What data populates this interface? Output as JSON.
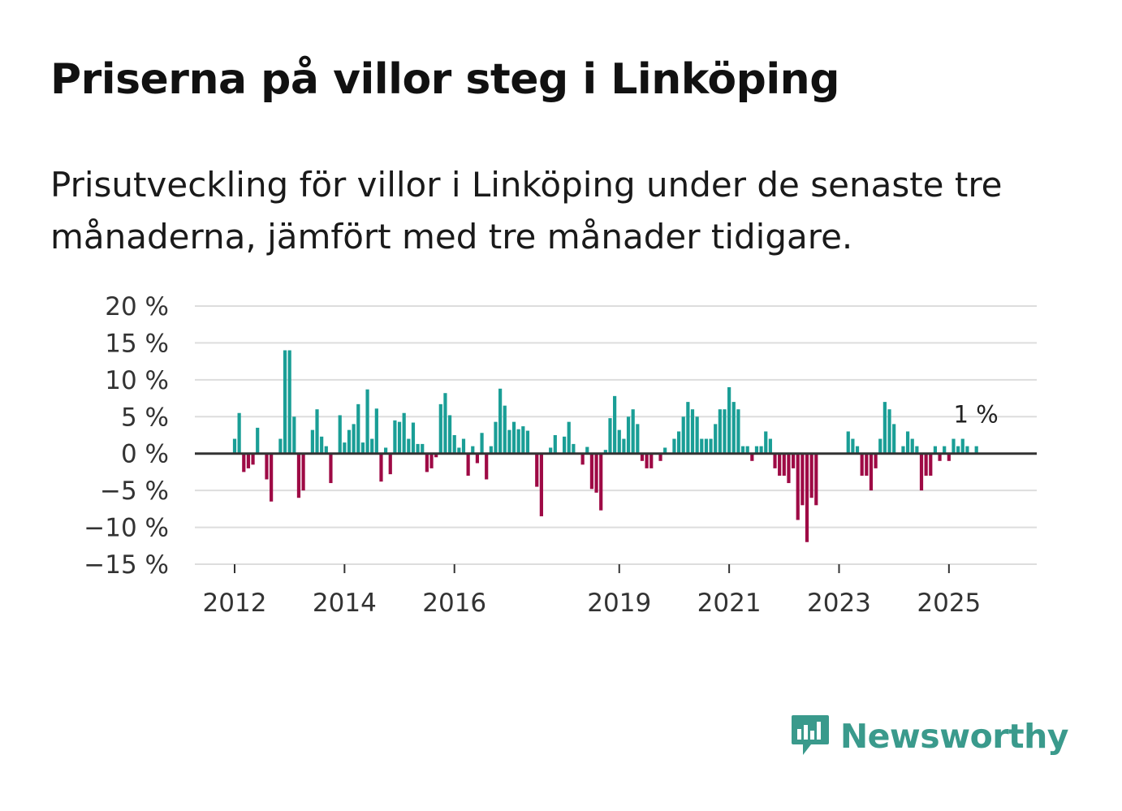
{
  "title": "Priserna på villor steg i Linköping",
  "subtitle": "Prisutveckling för villor i Linköping under de senaste tre månaderna, jämfört med tre månader tidigare.",
  "brand": {
    "name": "Newsworthy",
    "icon": "newsworthy-logo-icon",
    "color": "#3a9a8c"
  },
  "colors": {
    "positive": "#1a9e96",
    "negative": "#9e0a45",
    "grid": "#dddddd",
    "zero": "#333333"
  },
  "chart_data": {
    "type": "bar",
    "title": "Priserna på villor steg i Linköping",
    "ylabel": "",
    "xlabel": "",
    "ylim": [
      -15,
      20
    ],
    "y_ticks": [
      20,
      15,
      10,
      5,
      0,
      -5,
      -10,
      -15
    ],
    "y_tick_labels": [
      "20 %",
      "15 %",
      "10 %",
      "5 %",
      "0 %",
      "−5 %",
      "−10 %",
      "−15 %"
    ],
    "x_ticks": [
      "2012",
      "2014",
      "2016",
      "2019",
      "2021",
      "2023",
      "2025"
    ],
    "start": "2011-09",
    "values": [
      0,
      0,
      0,
      0,
      2,
      5.5,
      -2.5,
      -2,
      -1.5,
      3.5,
      0,
      -3.5,
      -6.5,
      0,
      2,
      14,
      14,
      5,
      -6,
      -5,
      0,
      3.2,
      6,
      2.3,
      1,
      -4,
      0,
      5.2,
      1.5,
      3.2,
      4,
      6.7,
      1.5,
      8.7,
      2,
      6.1,
      -3.8,
      0.8,
      -2.8,
      4.5,
      4.3,
      5.5,
      2,
      4.2,
      1.3,
      1.3,
      -2.5,
      -2,
      -0.5,
      6.7,
      8.2,
      5.2,
      2.5,
      0.8,
      2,
      -3,
      1,
      -1.3,
      2.8,
      -3.5,
      1,
      4.3,
      8.8,
      6.5,
      3.2,
      4.3,
      3.3,
      3.7,
      3.1,
      0,
      -4.5,
      -8.5,
      0,
      0.8,
      2.5,
      0,
      2.3,
      4.3,
      1.3,
      0,
      -1.5,
      0.9,
      -4.8,
      -5.3,
      -7.7,
      0.5,
      4.8,
      7.8,
      3.2,
      2,
      5,
      6,
      4,
      -1,
      -2,
      -2,
      0,
      -1,
      0.8,
      0,
      2,
      3,
      5,
      7,
      6,
      5,
      2,
      2,
      2,
      4,
      6,
      6,
      9,
      7,
      6,
      1,
      1,
      -1,
      1,
      1,
      3,
      2,
      -2,
      -3,
      -3,
      -4,
      -2,
      -9,
      -7,
      -12,
      -6,
      -7,
      0,
      0,
      0,
      0,
      0,
      0,
      3,
      2,
      1,
      -3,
      -3,
      -5,
      -2,
      2,
      7,
      6,
      4,
      0,
      1,
      3,
      2,
      1,
      -5,
      -3,
      -3,
      1,
      -1,
      1,
      -1,
      2,
      1,
      2,
      1,
      0,
      1
    ],
    "annotation": {
      "label": "1 %",
      "value": 1
    }
  }
}
